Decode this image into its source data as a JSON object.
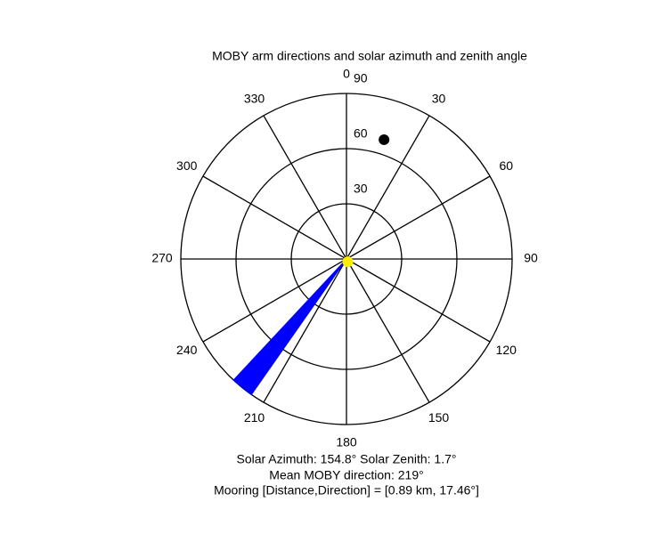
{
  "chart_data": {
    "type": "polar",
    "title": "MOBY arm directions and solar azimuth and zenith angle",
    "thetaticks": [
      0,
      30,
      60,
      90,
      120,
      150,
      180,
      210,
      240,
      270,
      300,
      330
    ],
    "rlim": [
      0,
      90
    ],
    "rticks": [
      30,
      60,
      90
    ],
    "direction": "clockwise",
    "zero": "north",
    "grid": true,
    "wedge": {
      "theta": [
        215,
        223
      ],
      "r": 90,
      "color": "#0000ff"
    },
    "points": [
      {
        "theta": 17.46,
        "r": 68,
        "color": "#000000"
      },
      {
        "theta": 154.8,
        "r": 1.7,
        "color": "#ffee00"
      }
    ],
    "annotations": [
      "Solar Azimuth: 154.8°   Solar Zenith: 1.7°",
      "Mean MOBY direction: 219°",
      "Mooring [Distance,Direction] = [0.89 km, 17.46°]"
    ]
  }
}
